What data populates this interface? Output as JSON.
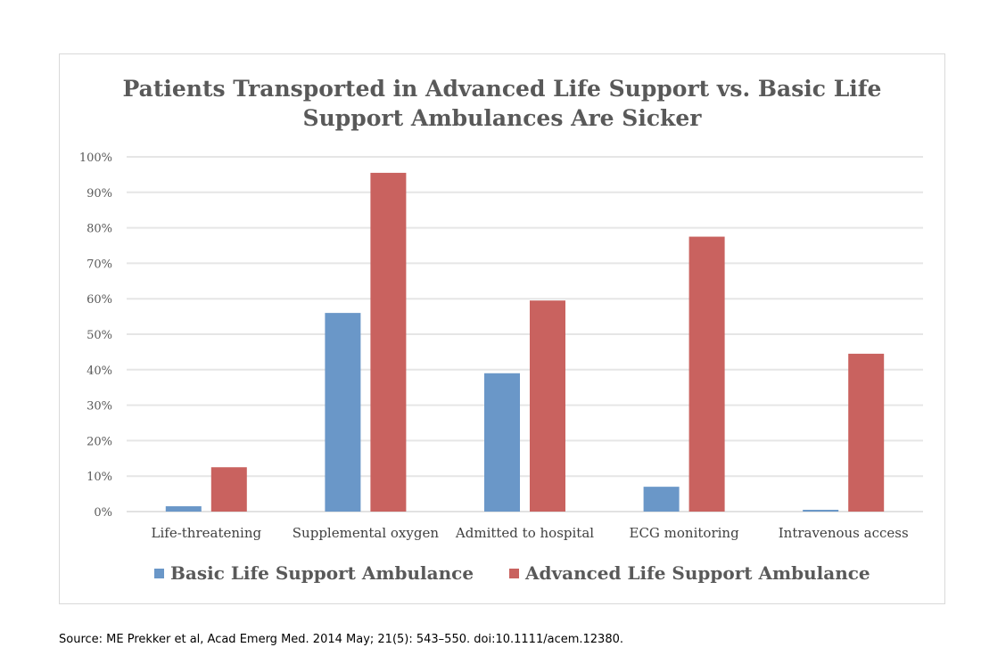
{
  "chart_data": {
    "type": "bar",
    "title_lines": [
      "Patients Transported in Advanced Life Support vs. Basic Life",
      "Support Ambulances Are Sicker"
    ],
    "categories": [
      "Life-threatening",
      "Supplemental oxygen",
      "Admitted to hospital",
      "ECG monitoring",
      "Intravenous access"
    ],
    "series": [
      {
        "name": "Basic Life Support Ambulance",
        "color": "#6a97c8",
        "values": [
          1.5,
          56,
          39,
          7,
          0.5
        ]
      },
      {
        "name": "Advanced Life Support Ambulance",
        "color": "#c9625f",
        "values": [
          12.5,
          95.5,
          59.5,
          77.5,
          44.5
        ]
      }
    ],
    "y_ticks": [
      "0%",
      "10%",
      "20%",
      "30%",
      "40%",
      "50%",
      "60%",
      "70%",
      "80%",
      "90%",
      "100%"
    ],
    "ylim": [
      0,
      100
    ],
    "grid": true,
    "legend_position": "bottom"
  },
  "source_note": "Source: ME Prekker et al, Acad Emerg Med. 2014 May; 21(5): 543–550. doi:10.1111/acem.12380."
}
